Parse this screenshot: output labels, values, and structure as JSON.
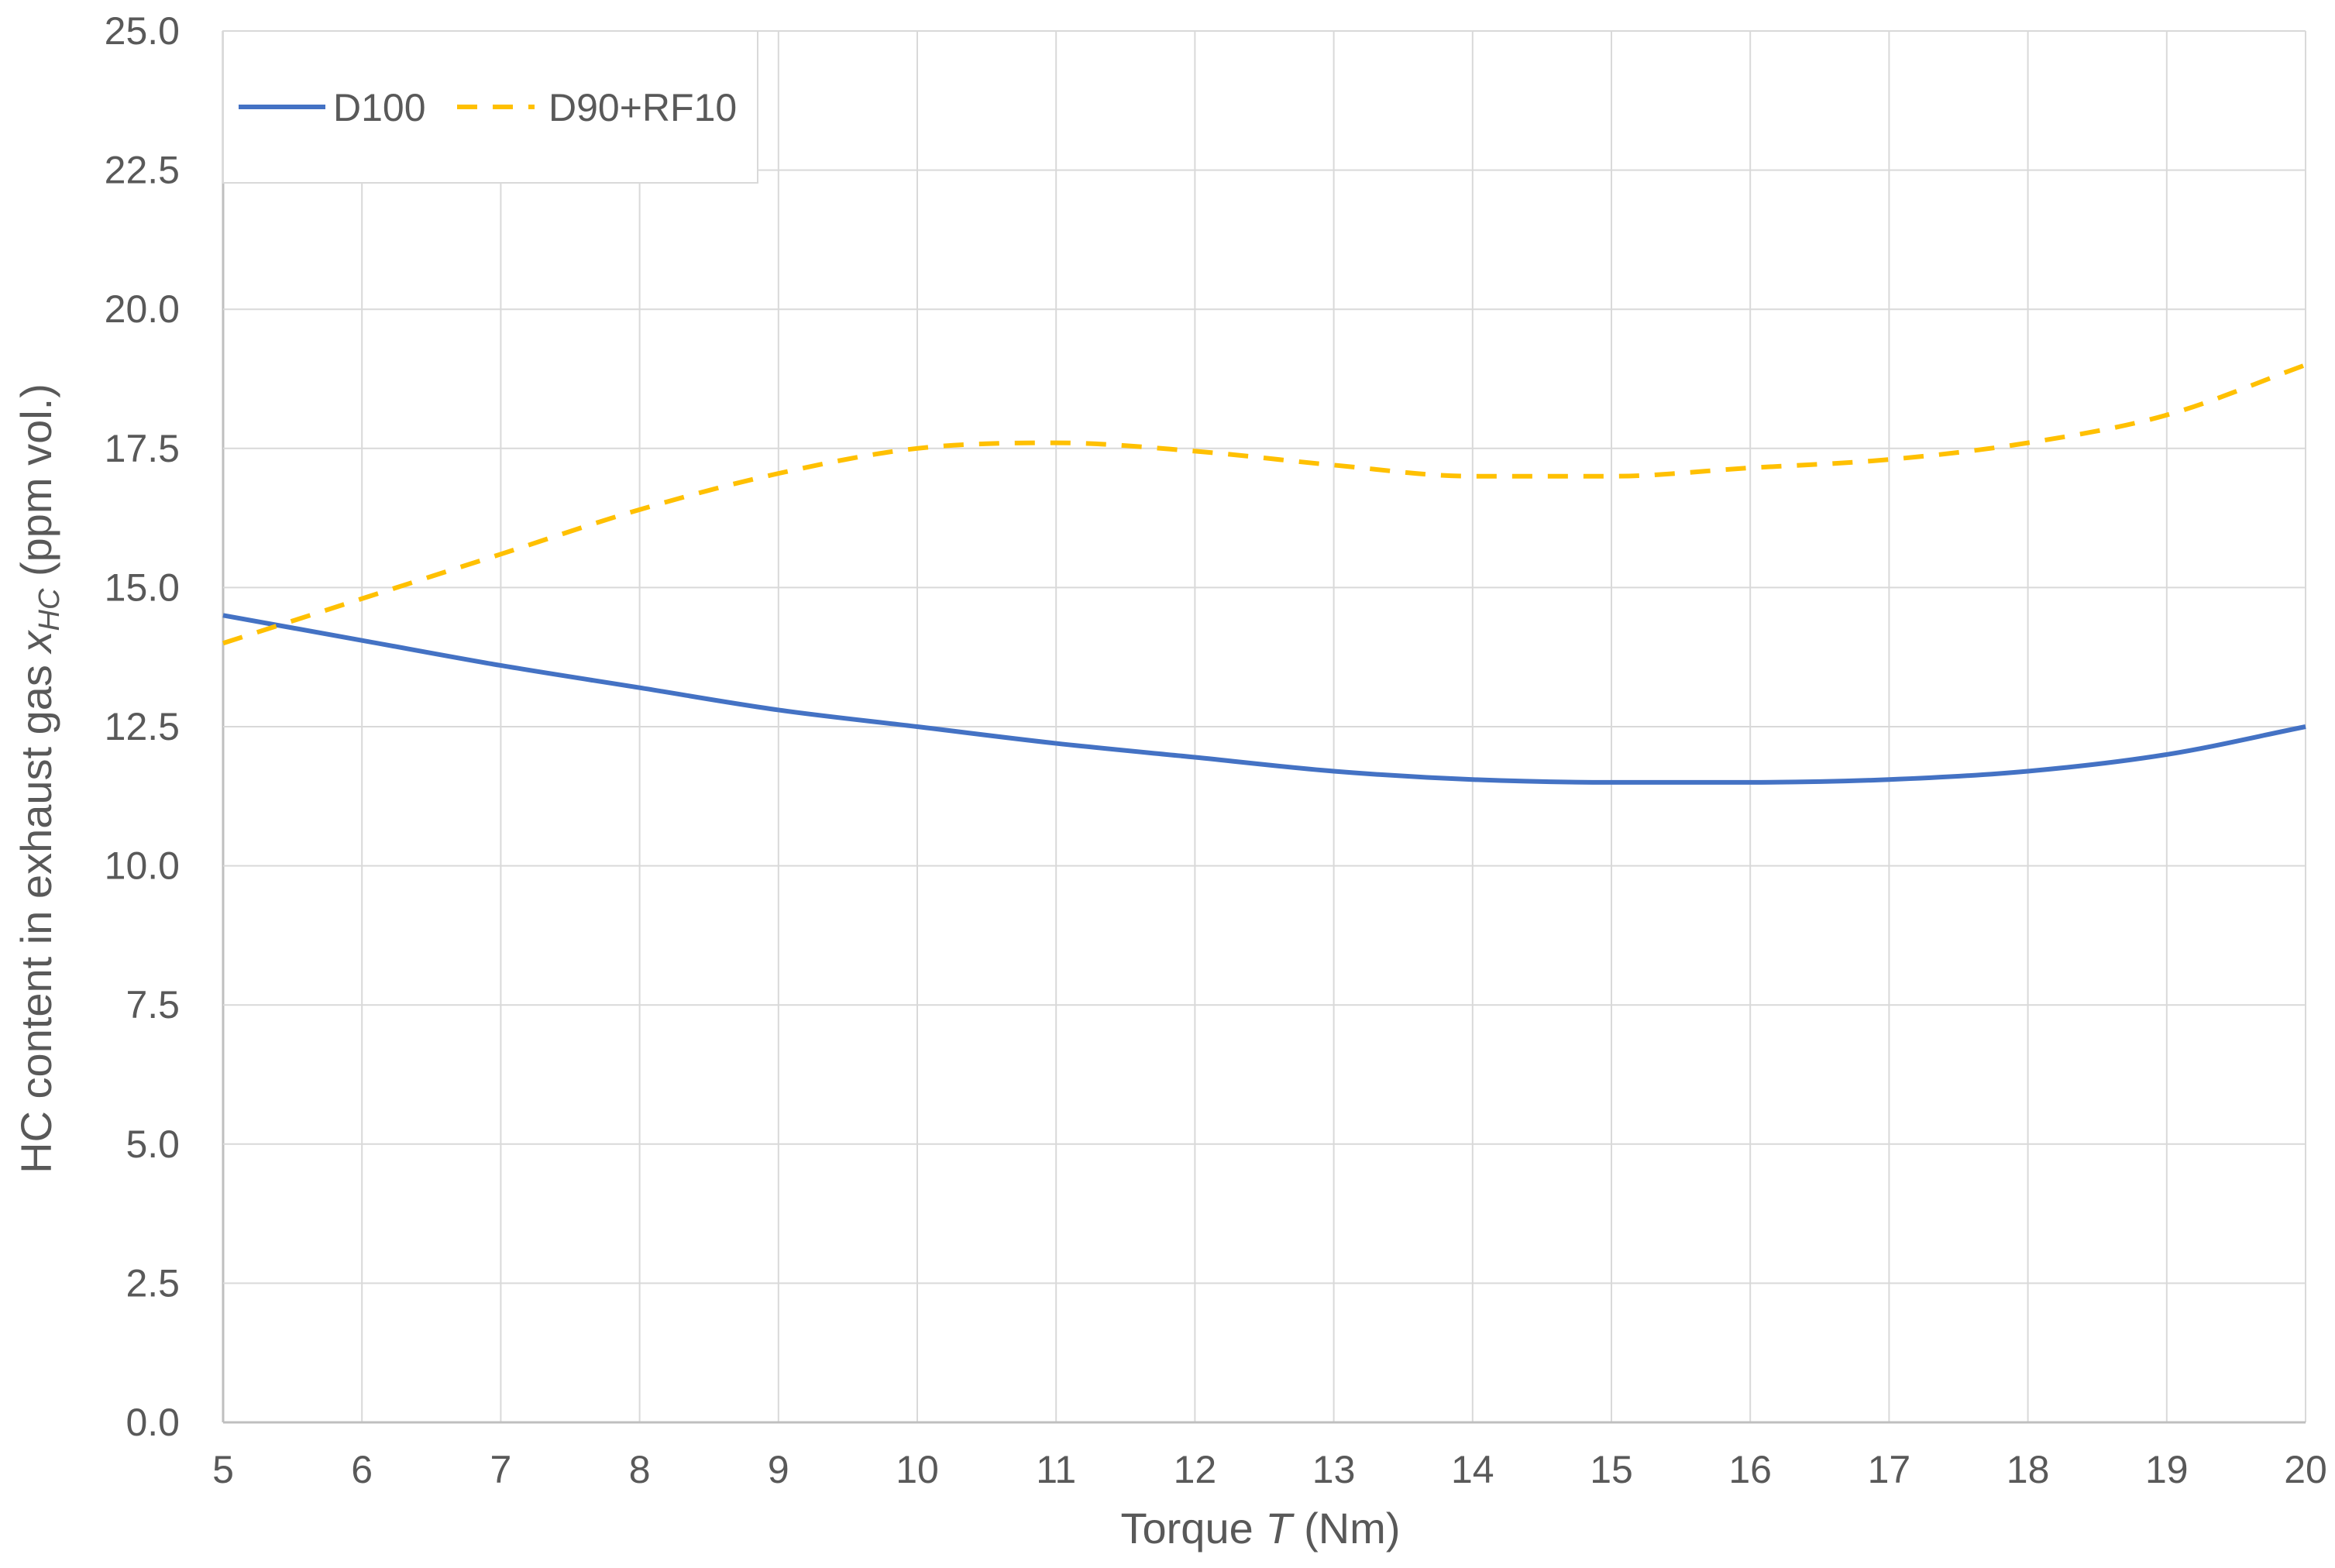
{
  "chart_data": {
    "type": "line",
    "xlabel": {
      "prefix": "Torque ",
      "var": "T",
      "suffix": " (Nm)"
    },
    "ylabel": {
      "prefix": "HC content in exhaust gas ",
      "var": "x",
      "sub": "HC",
      "suffix": " (ppm vol.)"
    },
    "xlim": [
      5,
      20
    ],
    "ylim": [
      0,
      25
    ],
    "x_ticks": [
      "5",
      "6",
      "7",
      "8",
      "9",
      "10",
      "11",
      "12",
      "13",
      "14",
      "15",
      "16",
      "17",
      "18",
      "19",
      "20"
    ],
    "y_ticks": [
      "0.0",
      "2.5",
      "5.0",
      "7.5",
      "10.0",
      "12.5",
      "15.0",
      "17.5",
      "20.0",
      "22.5",
      "25.0"
    ],
    "grid": true,
    "legend_position": "top-left",
    "series": [
      {
        "name": "D100",
        "color": "#4472c4",
        "style": "solid",
        "x": [
          5,
          6,
          7,
          8,
          9,
          10,
          11,
          12,
          13,
          14,
          15,
          16,
          17,
          18,
          19,
          20
        ],
        "y": [
          14.5,
          14.05,
          13.6,
          13.2,
          12.8,
          12.5,
          12.2,
          11.95,
          11.7,
          11.55,
          11.5,
          11.5,
          11.55,
          11.7,
          12.0,
          12.5
        ]
      },
      {
        "name": "D90+RF10",
        "color": "#ffc000",
        "style": "dashed",
        "x": [
          5,
          6,
          7,
          8,
          9,
          10,
          11,
          12,
          13,
          14,
          15,
          16,
          17,
          18,
          19,
          20
        ],
        "y": [
          14.0,
          14.8,
          15.6,
          16.4,
          17.05,
          17.5,
          17.6,
          17.45,
          17.2,
          17.0,
          17.0,
          17.15,
          17.3,
          17.6,
          18.1,
          19.0
        ]
      }
    ]
  }
}
